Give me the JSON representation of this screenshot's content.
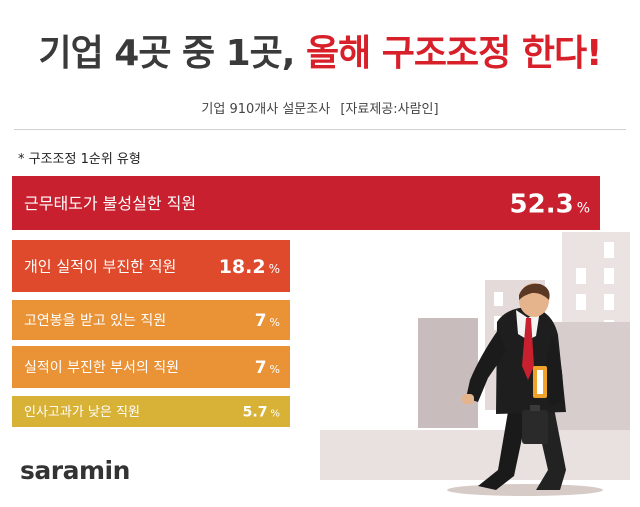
{
  "title": {
    "part1": "기업 4곳 중 1곳,",
    "part2": "올해 구조조정 한다!"
  },
  "subtitle": {
    "survey": "기업 910개사 설문조사",
    "source": "[자료제공:사람인]"
  },
  "note": "* 구조조정 1순위 유형",
  "logo": "saramin",
  "chart_data": {
    "type": "bar",
    "orientation": "horizontal",
    "title": "",
    "unit": "%",
    "categories": [
      "근무태도가 불성실한 직원",
      "개인 실적이 부진한 직원",
      "고연봉을 받고 있는 직원",
      "실적이 부진한 부서의 직원",
      "인사고과가 낮은 직원"
    ],
    "values": [
      52.3,
      18.2,
      7,
      7,
      5.7
    ],
    "value_labels": [
      "52.3",
      "18.2",
      "7",
      "7",
      "5.7"
    ],
    "colors": [
      "#c8202e",
      "#de4a2b",
      "#e99236",
      "#e99236",
      "#d8b236"
    ]
  }
}
